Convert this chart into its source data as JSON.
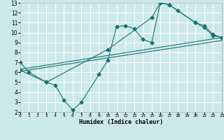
{
  "xlabel": "Humidex (Indice chaleur)",
  "xlim": [
    0,
    23
  ],
  "ylim": [
    2,
    13
  ],
  "xticks": [
    0,
    1,
    2,
    3,
    4,
    5,
    6,
    7,
    8,
    9,
    10,
    11,
    12,
    13,
    14,
    15,
    16,
    17,
    18,
    19,
    20,
    21,
    22,
    23
  ],
  "yticks": [
    2,
    3,
    4,
    5,
    6,
    7,
    8,
    9,
    10,
    11,
    12,
    13
  ],
  "bg_color": "#cce9e9",
  "line_color": "#1a7070",
  "grid_color": "#ffffff",
  "line1_x": [
    0,
    1,
    3,
    4,
    5,
    6,
    7,
    9,
    10,
    11,
    12,
    13,
    14,
    15,
    16,
    17,
    20,
    21,
    22,
    23
  ],
  "line1_y": [
    7.0,
    6.0,
    5.0,
    4.7,
    3.2,
    2.2,
    3.0,
    5.8,
    7.2,
    10.6,
    10.7,
    10.4,
    9.3,
    9.0,
    13.0,
    12.8,
    11.0,
    10.5,
    9.7,
    9.5
  ],
  "line2_x": [
    0,
    3,
    10,
    15,
    16,
    17,
    18,
    20,
    21,
    22,
    23
  ],
  "line2_y": [
    6.2,
    5.0,
    8.3,
    11.5,
    13.0,
    12.8,
    12.2,
    11.0,
    10.7,
    9.8,
    9.5
  ],
  "line3_x": [
    0,
    23
  ],
  "line3_y": [
    6.3,
    9.5
  ],
  "line4_x": [
    0,
    23
  ],
  "line4_y": [
    6.1,
    9.2
  ],
  "markersize": 2.5
}
